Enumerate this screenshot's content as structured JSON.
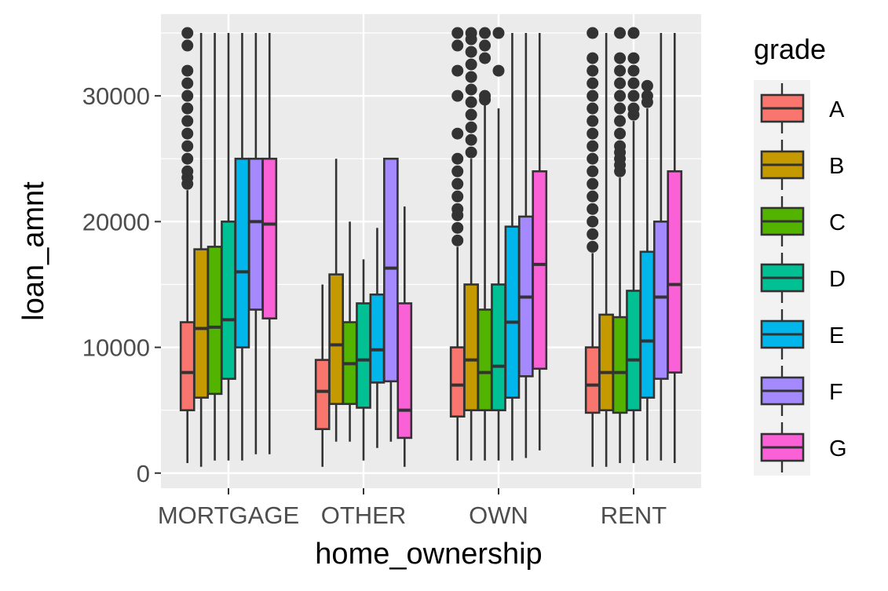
{
  "chart_data": {
    "type": "boxplot",
    "title": "",
    "xlabel": "home_ownership",
    "ylabel": "loan_amnt",
    "categories": [
      "MORTGAGE",
      "OTHER",
      "OWN",
      "RENT"
    ],
    "ylim": [
      -1200,
      36500
    ],
    "yticks": [
      0,
      10000,
      20000,
      30000
    ],
    "grid": true,
    "legend": {
      "title": "grade",
      "position": "right"
    },
    "series": [
      {
        "name": "A",
        "color": "#F8766D",
        "boxes": [
          {
            "min": 800,
            "q1": 5000,
            "median": 8000,
            "q3": 12000,
            "max": 22500,
            "outliers": [
              23000,
              23500,
              24000,
              25000,
              26000,
              27000,
              28000,
              29000,
              30000,
              31000,
              32000,
              34000,
              35000
            ]
          },
          {
            "min": 500,
            "q1": 3500,
            "median": 6500,
            "q3": 9000,
            "max": 15000,
            "outliers": []
          },
          {
            "min": 1000,
            "q1": 4500,
            "median": 7000,
            "q3": 10000,
            "max": 18000,
            "outliers": [
              18500,
              19500,
              20500,
              21000,
              22000,
              23000,
              24000,
              25000,
              27000,
              30000,
              32000,
              34000,
              35000
            ]
          },
          {
            "min": 500,
            "q1": 4800,
            "median": 7000,
            "q3": 10000,
            "max": 17500,
            "outliers": [
              18000,
              19000,
              20000,
              21000,
              22000,
              23000,
              24000,
              25000,
              26000,
              27000,
              28000,
              29000,
              30000,
              31000,
              32000,
              33000,
              35000
            ]
          }
        ]
      },
      {
        "name": "B",
        "color": "#C49A00",
        "boxes": [
          {
            "min": 500,
            "q1": 6000,
            "median": 11500,
            "q3": 17800,
            "max": 35000,
            "outliers": []
          },
          {
            "min": 2500,
            "q1": 5500,
            "median": 10200,
            "q3": 15800,
            "max": 25000,
            "outliers": []
          },
          {
            "min": 1000,
            "q1": 5000,
            "median": 9000,
            "q3": 15000,
            "max": 25000,
            "outliers": [
              25500,
              26500,
              27500,
              28500,
              29500,
              30500,
              31500,
              32500,
              33500,
              34500,
              35000
            ]
          },
          {
            "min": 500,
            "q1": 5000,
            "median": 8000,
            "q3": 12600,
            "max": 35000,
            "outliers": []
          }
        ]
      },
      {
        "name": "C",
        "color": "#53B400",
        "boxes": [
          {
            "min": 1000,
            "q1": 6300,
            "median": 11600,
            "q3": 18000,
            "max": 35000,
            "outliers": []
          },
          {
            "min": 2500,
            "q1": 5500,
            "median": 8700,
            "q3": 12000,
            "max": 20000,
            "outliers": []
          },
          {
            "min": 1000,
            "q1": 5000,
            "median": 8000,
            "q3": 13000,
            "max": 29500,
            "outliers": [
              29700,
              30000,
              33000,
              34000,
              35000
            ]
          },
          {
            "min": 800,
            "q1": 4800,
            "median": 8000,
            "q3": 12400,
            "max": 23500,
            "outliers": [
              24000,
              24500,
              25000,
              25500,
              26000,
              27000,
              28000,
              29000,
              30000,
              31000,
              32000,
              33000,
              35000
            ]
          }
        ]
      },
      {
        "name": "D",
        "color": "#00C094",
        "boxes": [
          {
            "min": 1000,
            "q1": 7500,
            "median": 12200,
            "q3": 20000,
            "max": 35000,
            "outliers": []
          },
          {
            "min": 1000,
            "q1": 5200,
            "median": 9000,
            "q3": 13500,
            "max": 17000,
            "outliers": []
          },
          {
            "min": 1000,
            "q1": 5000,
            "median": 8500,
            "q3": 15000,
            "max": 29000,
            "outliers": [
              32000,
              35000
            ]
          },
          {
            "min": 800,
            "q1": 5000,
            "median": 9000,
            "q3": 14500,
            "max": 28000,
            "outliers": [
              28500,
              29000,
              30000,
              31000,
              32000,
              33000,
              35000
            ]
          }
        ]
      },
      {
        "name": "E",
        "color": "#00B6EB",
        "boxes": [
          {
            "min": 1000,
            "q1": 10000,
            "median": 16000,
            "q3": 25000,
            "max": 35000,
            "outliers": []
          },
          {
            "min": 2000,
            "q1": 7200,
            "median": 9800,
            "q3": 14200,
            "max": 19500,
            "outliers": []
          },
          {
            "min": 1000,
            "q1": 6000,
            "median": 12000,
            "q3": 19600,
            "max": 35000,
            "outliers": []
          },
          {
            "min": 1000,
            "q1": 6000,
            "median": 10500,
            "q3": 17600,
            "max": 29000,
            "outliers": [
              29500,
              30000,
              30800
            ]
          }
        ]
      },
      {
        "name": "F",
        "color": "#A58AFF",
        "boxes": [
          {
            "min": 1500,
            "q1": 13000,
            "median": 20000,
            "q3": 25000,
            "max": 35000,
            "outliers": []
          },
          {
            "min": 2500,
            "q1": 7300,
            "median": 16300,
            "q3": 25000,
            "max": 25000,
            "outliers": []
          },
          {
            "min": 1200,
            "q1": 7700,
            "median": 14000,
            "q3": 20400,
            "max": 35000,
            "outliers": []
          },
          {
            "min": 1000,
            "q1": 7500,
            "median": 14000,
            "q3": 20000,
            "max": 35000,
            "outliers": []
          }
        ]
      },
      {
        "name": "G",
        "color": "#FB61D7",
        "boxes": [
          {
            "min": 1500,
            "q1": 12300,
            "median": 19800,
            "q3": 25000,
            "max": 35000,
            "outliers": []
          },
          {
            "min": 500,
            "q1": 2800,
            "median": 5000,
            "q3": 13500,
            "max": 21200,
            "outliers": []
          },
          {
            "min": 1800,
            "q1": 8300,
            "median": 16600,
            "q3": 24000,
            "max": 35000,
            "outliers": []
          },
          {
            "min": 800,
            "q1": 8000,
            "median": 15000,
            "q3": 24000,
            "max": 35000,
            "outliers": []
          }
        ]
      }
    ]
  }
}
